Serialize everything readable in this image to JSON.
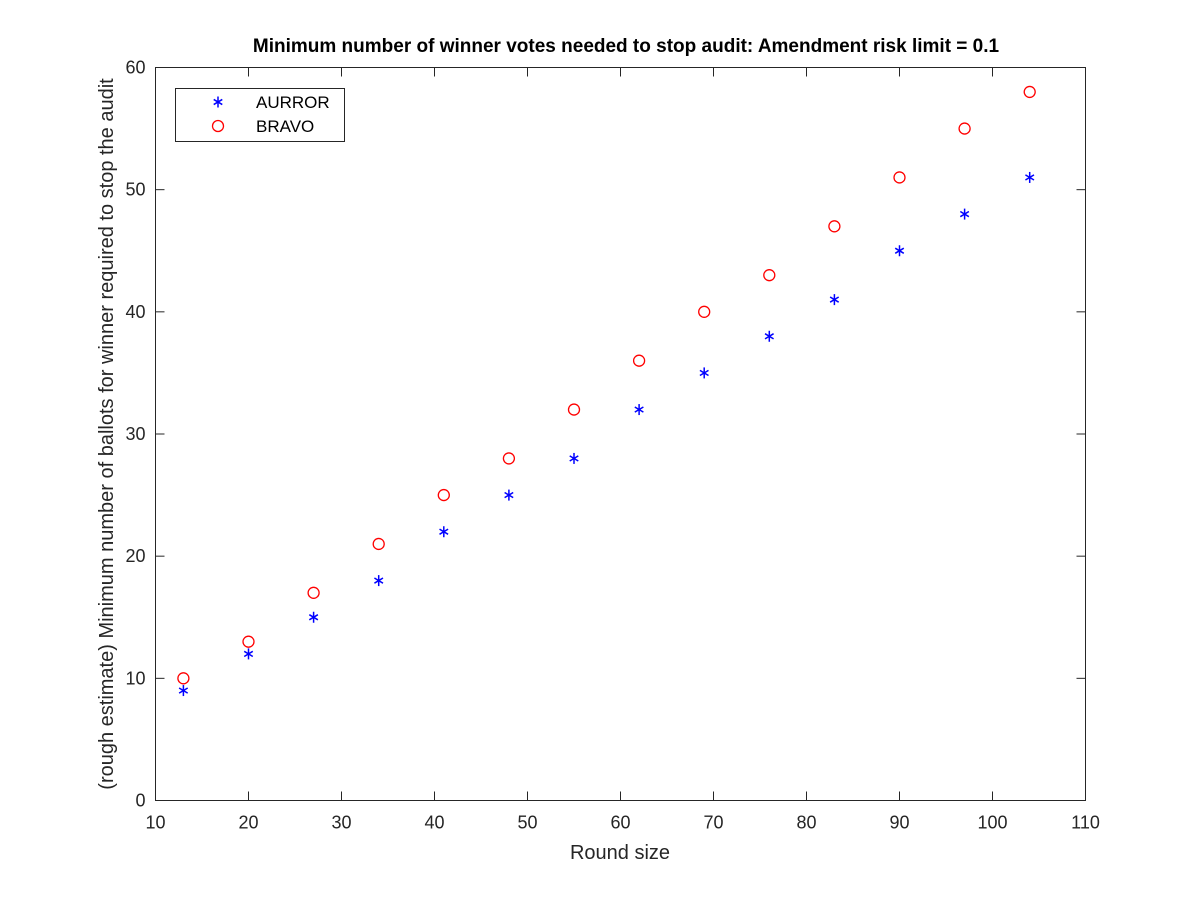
{
  "chart_data": {
    "type": "scatter",
    "title": "Minimum number of winner votes needed to stop audit: Amendment risk limit = 0.1",
    "xlabel": "Round size",
    "ylabel": "(rough estimate) Minimum number of ballots for winner required to stop the audit",
    "xlim": [
      10,
      110
    ],
    "ylim": [
      0,
      60
    ],
    "xticks": [
      10,
      20,
      30,
      40,
      50,
      60,
      70,
      80,
      90,
      100,
      110
    ],
    "yticks": [
      0,
      10,
      20,
      30,
      40,
      50,
      60
    ],
    "grid": false,
    "legend_position": "top-left",
    "series": [
      {
        "name": "AURROR",
        "marker": "asterisk",
        "color": "#0000ff",
        "points": [
          [
            13,
            9
          ],
          [
            20,
            12
          ],
          [
            27,
            15
          ],
          [
            34,
            18
          ],
          [
            41,
            22
          ],
          [
            48,
            25
          ],
          [
            55,
            28
          ],
          [
            62,
            32
          ],
          [
            69,
            35
          ],
          [
            76,
            38
          ],
          [
            83,
            41
          ],
          [
            90,
            45
          ],
          [
            97,
            48
          ],
          [
            104,
            51
          ]
        ]
      },
      {
        "name": "BRAVO",
        "marker": "circle",
        "color": "#ff0000",
        "points": [
          [
            13,
            10
          ],
          [
            20,
            13
          ],
          [
            27,
            17
          ],
          [
            34,
            21
          ],
          [
            41,
            25
          ],
          [
            48,
            28
          ],
          [
            55,
            32
          ],
          [
            62,
            36
          ],
          [
            69,
            40
          ],
          [
            76,
            43
          ],
          [
            83,
            47
          ],
          [
            90,
            51
          ],
          [
            97,
            55
          ],
          [
            104,
            58
          ]
        ]
      }
    ]
  }
}
